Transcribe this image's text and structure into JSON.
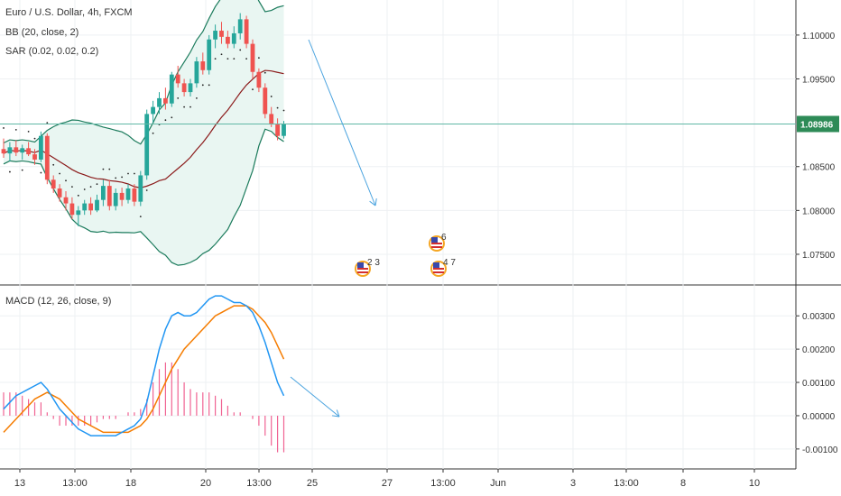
{
  "header": {
    "symbol": "Euro / U.S. Dollar, 4h, FXCM",
    "bb_label": "BB (20, close, 2)",
    "sar_label": "SAR (0.02, 0.02, 0.2)",
    "macd_label": "MACD (12, 26, close, 9)"
  },
  "colors": {
    "bull": "#26a69a",
    "bear": "#ef5350",
    "bb_band": "#1b7b5c",
    "bb_basis": "#8b1a1a",
    "bb_fill": "#e9f6f2",
    "sar": "#222222",
    "macd": "#2196f3",
    "signal": "#f57c00",
    "hist_pos": "#f06292",
    "price_line": "#5fb8a6",
    "arrow": "#4aa3df"
  },
  "chart_data": [
    {
      "type": "candlestick",
      "title": "Euro / U.S. Dollar, 4h, FXCM",
      "ylim": [
        1.0715,
        1.104
      ],
      "yticks": [
        "1.07500",
        "1.08000",
        "1.08500",
        "1.09500",
        "1.10000"
      ],
      "last_price": "1.08986",
      "candles": [
        [
          1.087,
          1.0882,
          1.086,
          1.0865
        ],
        [
          1.0865,
          1.0878,
          1.0856,
          1.0872
        ],
        [
          1.0872,
          1.088,
          1.0862,
          1.0866
        ],
        [
          1.0866,
          1.0875,
          1.0858,
          1.0871
        ],
        [
          1.0871,
          1.0878,
          1.0862,
          1.0864
        ],
        [
          1.0864,
          1.087,
          1.0852,
          1.0858
        ],
        [
          1.0858,
          1.089,
          1.0855,
          1.0885
        ],
        [
          1.0885,
          1.0888,
          1.083,
          1.0835
        ],
        [
          1.0835,
          1.084,
          1.082,
          1.0825
        ],
        [
          1.0825,
          1.083,
          1.081,
          1.0815
        ],
        [
          1.0815,
          1.0822,
          1.08,
          1.0808
        ],
        [
          1.0808,
          1.0815,
          1.079,
          1.0795
        ],
        [
          1.0795,
          1.0805,
          1.0782,
          1.08
        ],
        [
          1.08,
          1.0812,
          1.0795,
          1.0808
        ],
        [
          1.0808,
          1.0815,
          1.0795,
          1.08
        ],
        [
          1.08,
          1.0818,
          1.0798,
          1.0812
        ],
        [
          1.0812,
          1.0835,
          1.0805,
          1.0828
        ],
        [
          1.0828,
          1.0835,
          1.08,
          1.0805
        ],
        [
          1.0805,
          1.0825,
          1.08,
          1.082
        ],
        [
          1.082,
          1.0826,
          1.0805,
          1.0812
        ],
        [
          1.0812,
          1.083,
          1.0808,
          1.0825
        ],
        [
          1.0825,
          1.083,
          1.0805,
          1.081
        ],
        [
          1.081,
          1.0845,
          1.0805,
          1.084
        ],
        [
          1.084,
          1.0915,
          1.0835,
          1.091
        ],
        [
          1.091,
          1.0925,
          1.09,
          1.0918
        ],
        [
          1.0918,
          1.0935,
          1.091,
          1.0928
        ],
        [
          1.0928,
          1.094,
          1.0915,
          1.0922
        ],
        [
          1.0922,
          1.0958,
          1.0918,
          1.0955
        ],
        [
          1.0955,
          1.0965,
          1.094,
          1.0945
        ],
        [
          1.0945,
          1.095,
          1.093,
          1.0935
        ],
        [
          1.0935,
          1.095,
          1.093,
          1.0945
        ],
        [
          1.0945,
          1.0975,
          1.094,
          1.097
        ],
        [
          1.097,
          1.098,
          1.0955,
          1.096
        ],
        [
          1.096,
          1.1,
          1.0955,
          1.0995
        ],
        [
          1.0995,
          1.1012,
          1.0985,
          1.1005
        ],
        [
          1.1005,
          1.1015,
          1.099,
          1.0998
        ],
        [
          1.0998,
          1.1005,
          1.0985,
          1.099
        ],
        [
          1.099,
          1.101,
          1.0985,
          1.1002
        ],
        [
          1.1002,
          1.1025,
          1.0995,
          1.1018
        ],
        [
          1.1018,
          1.1022,
          1.0985,
          1.099
        ],
        [
          1.099,
          1.0995,
          1.095,
          1.0958
        ],
        [
          1.0958,
          1.0962,
          1.0935,
          1.094
        ],
        [
          1.094,
          1.0945,
          1.0905,
          1.091
        ],
        [
          1.091,
          1.0918,
          1.0895,
          1.0898
        ],
        [
          1.0898,
          1.0905,
          1.088,
          1.0885
        ],
        [
          1.0885,
          1.0902,
          1.0882,
          1.0899
        ]
      ]
    },
    {
      "type": "line",
      "title": "MACD (12, 26, close, 9)",
      "ylim": [
        -0.0016,
        0.0039
      ],
      "yticks": [
        "0.00300",
        "0.00200",
        "0.00100",
        "0.00000",
        "-0.00100"
      ],
      "series": [
        {
          "values": [
            0.0002,
            0.0004,
            0.0006,
            0.0007,
            0.0008,
            0.0009,
            0.001,
            0.0008,
            0.0005,
            0.0002,
            0.0,
            -0.0002,
            -0.0004,
            -0.0005,
            -0.0006,
            -0.0006,
            -0.0006,
            -0.0006,
            -0.0006,
            -0.0005,
            -0.0004,
            -0.0003,
            -0.0001,
            0.0004,
            0.0012,
            0.002,
            0.0026,
            0.003,
            0.0031,
            0.003,
            0.003,
            0.0031,
            0.0033,
            0.0035,
            0.0036,
            0.0036,
            0.0035,
            0.0034,
            0.0034,
            0.0033,
            0.0031,
            0.0027,
            0.0022,
            0.0016,
            0.001,
            0.0006
          ]
        },
        {
          "values": [
            -0.0005,
            -0.0003,
            -0.0001,
            0.0001,
            0.0003,
            0.0005,
            0.0006,
            0.0007,
            0.0006,
            0.0005,
            0.0003,
            0.0001,
            -0.0001,
            -0.0002,
            -0.0003,
            -0.0004,
            -0.0005,
            -0.0005,
            -0.0005,
            -0.0005,
            -0.0005,
            -0.0004,
            -0.0003,
            -0.0001,
            0.0002,
            0.0006,
            0.001,
            0.0014,
            0.0017,
            0.002,
            0.0022,
            0.0024,
            0.0026,
            0.0028,
            0.003,
            0.0031,
            0.0032,
            0.0033,
            0.0033,
            0.0033,
            0.0032,
            0.003,
            0.0028,
            0.0025,
            0.0021,
            0.0017
          ]
        },
        {
          "values": [
            0.0007,
            0.0007,
            0.0007,
            0.0006,
            0.0005,
            0.0004,
            0.0004,
            0.0001,
            -0.0001,
            -0.0003,
            -0.0003,
            -0.0003,
            -0.0003,
            -0.0003,
            -0.0003,
            -0.0002,
            -0.0001,
            -0.0001,
            -0.0001,
            0.0,
            0.0001,
            0.0001,
            0.0002,
            0.0005,
            0.001,
            0.0014,
            0.0016,
            0.0016,
            0.0014,
            0.001,
            0.0008,
            0.0007,
            0.0007,
            0.0007,
            0.0006,
            0.0005,
            0.0003,
            0.0001,
            0.0001,
            0.0,
            -0.0001,
            -0.0003,
            -0.0006,
            -0.0009,
            -0.0011,
            -0.0011
          ]
        }
      ]
    }
  ],
  "x_axis": {
    "labels": [
      "13",
      "13:00",
      "18",
      "20",
      "13:00",
      "25",
      "27",
      "13:00",
      "Jun",
      "3",
      "13:00",
      "8",
      "10"
    ]
  },
  "events": [
    {
      "label": "2 3",
      "icon": "us-flag-icon"
    },
    {
      "label": "6",
      "icon": "us-flag-icon"
    },
    {
      "label": "4 7",
      "icon": "us-flag-icon"
    }
  ]
}
